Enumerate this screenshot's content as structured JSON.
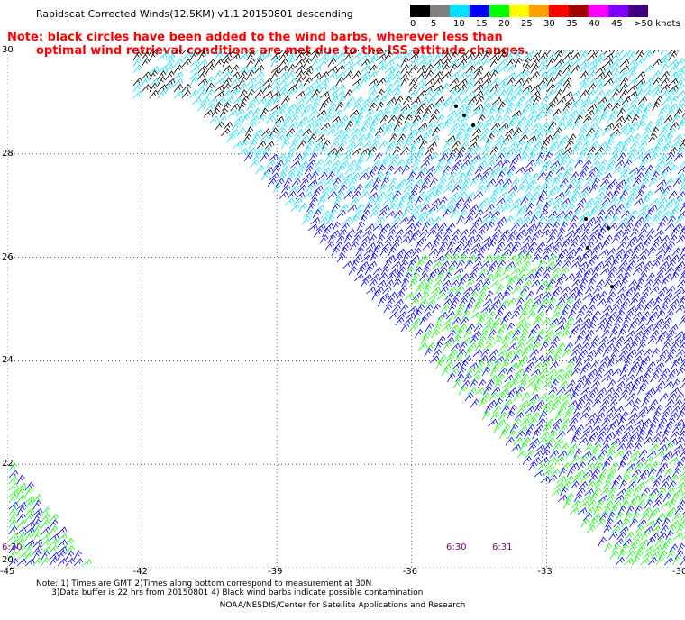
{
  "header": {
    "title": "Rapidscat Corrected Winds(12.5KM) v1.1 20150801 descending",
    "note_line1": "Note: black circles have been added to the wind barbs, wherever less than",
    "note_line2": "optimal wind retrieval conditions are met due to the ISS attitude changes."
  },
  "legend": {
    "labels": [
      "0",
      "5",
      "10",
      "15",
      "20",
      "25",
      "30",
      "35",
      "40",
      "45",
      ">50 knots"
    ],
    "colors": [
      "#000000",
      "#808080",
      "#00e0ff",
      "#0000ff",
      "#00ff00",
      "#ffff00",
      "#ffa000",
      "#ff0000",
      "#a00000",
      "#ff00ff",
      "#8000ff",
      "#400080"
    ]
  },
  "axes": {
    "x_ticks": [
      "-45",
      "-42",
      "-39",
      "-36",
      "-33",
      "-30"
    ],
    "y_ticks": [
      "30",
      "28",
      "26",
      "24",
      "22",
      "20"
    ]
  },
  "times": {
    "left": "6:30",
    "mid1": "6:30",
    "mid2": "6:31"
  },
  "footer": {
    "note1": "Note: 1) Times are GMT 2)Times along bottom correspond to measurement at 30N",
    "note2": "      3)Data buffer is 22 hrs from 20150801 4) Black wind barbs indicate possible contamination",
    "credit": "NOAA/NESDIS/Center for Satellite Applications and Research"
  }
}
